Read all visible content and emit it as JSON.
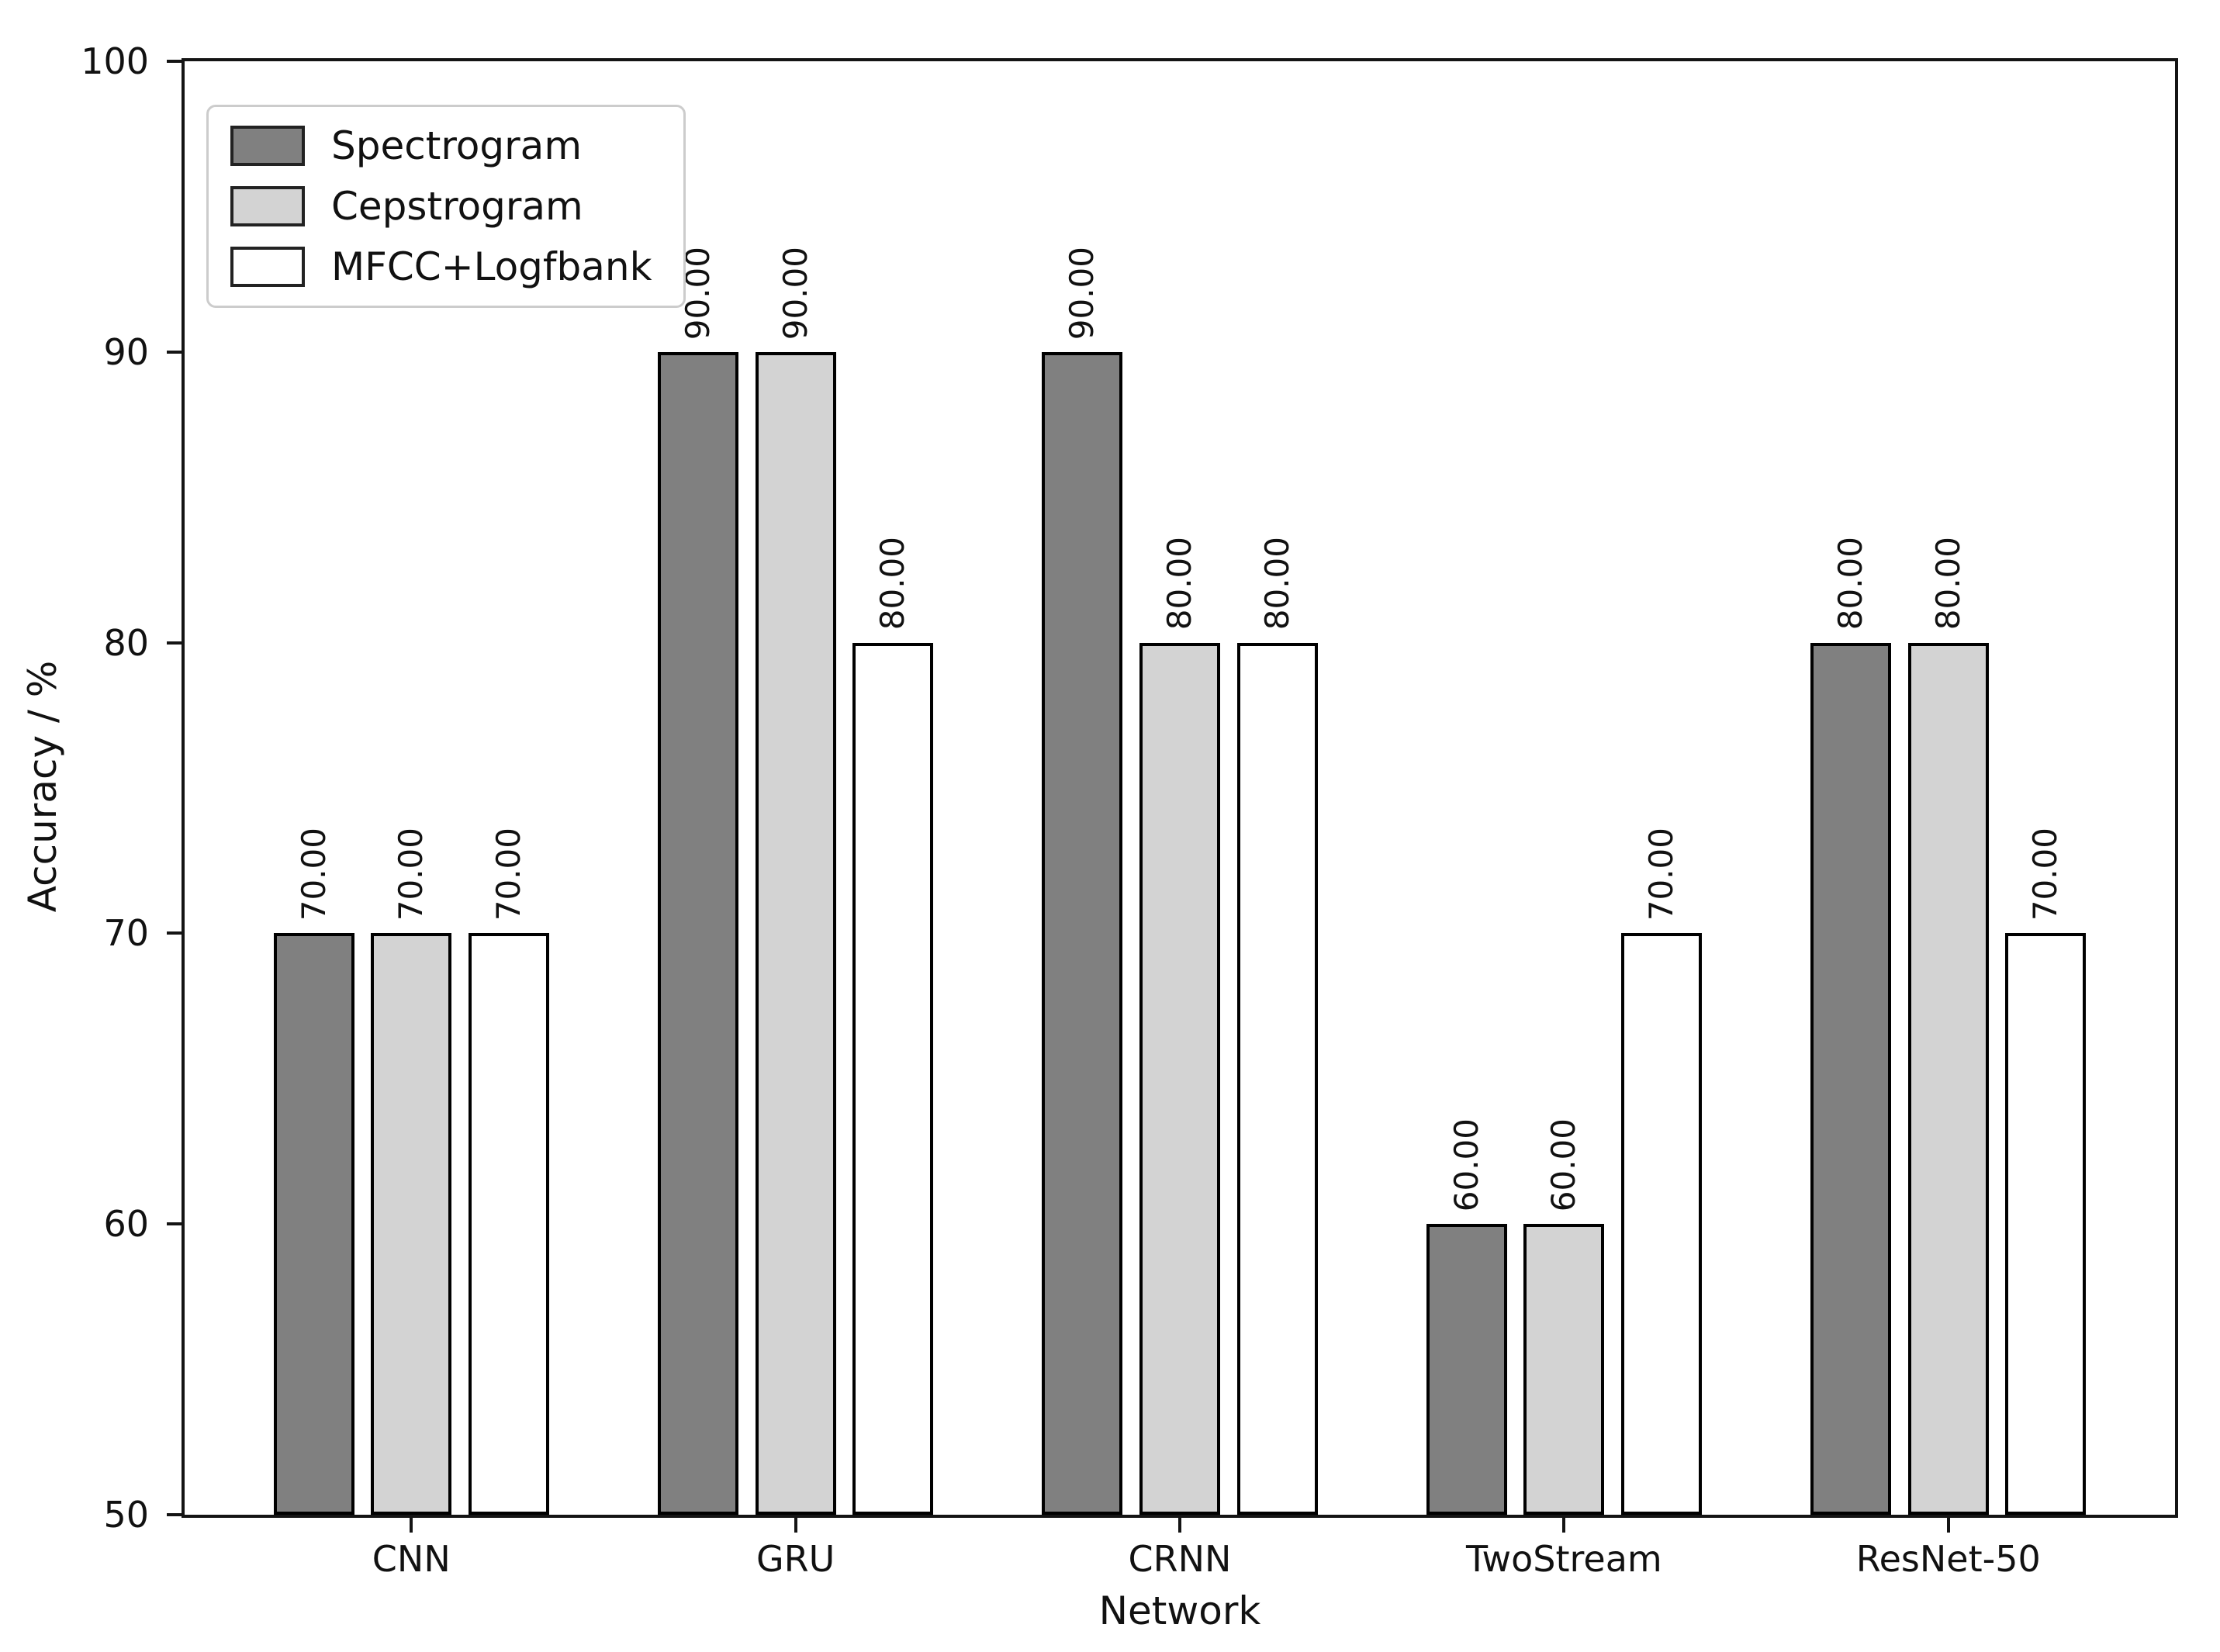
{
  "chart_data": {
    "type": "bar",
    "title": "",
    "xlabel": "Network",
    "ylabel": "Accuracy / %",
    "categories": [
      "CNN",
      "GRU",
      "CRNN",
      "TwoStream",
      "ResNet-50"
    ],
    "series": [
      {
        "name": "Spectrogram",
        "color": "#808080",
        "values": [
          70,
          90,
          90,
          60,
          80
        ]
      },
      {
        "name": "Cepstrogram",
        "color": "#d3d3d3",
        "values": [
          70,
          90,
          80,
          60,
          80
        ]
      },
      {
        "name": "MFCC+Logfbank",
        "color": "#ffffff",
        "values": [
          70,
          80,
          80,
          70,
          70
        ]
      }
    ],
    "ylim": [
      50,
      100
    ],
    "yticks": [
      50,
      60,
      70,
      80,
      90,
      100
    ],
    "value_label_decimals": 2,
    "bar_edge_color": "#000000",
    "axis_color": "#141414",
    "grid": false,
    "legend": {
      "position": "upper-left",
      "frame_color": "#cccccc",
      "background": "#ffffff"
    }
  }
}
